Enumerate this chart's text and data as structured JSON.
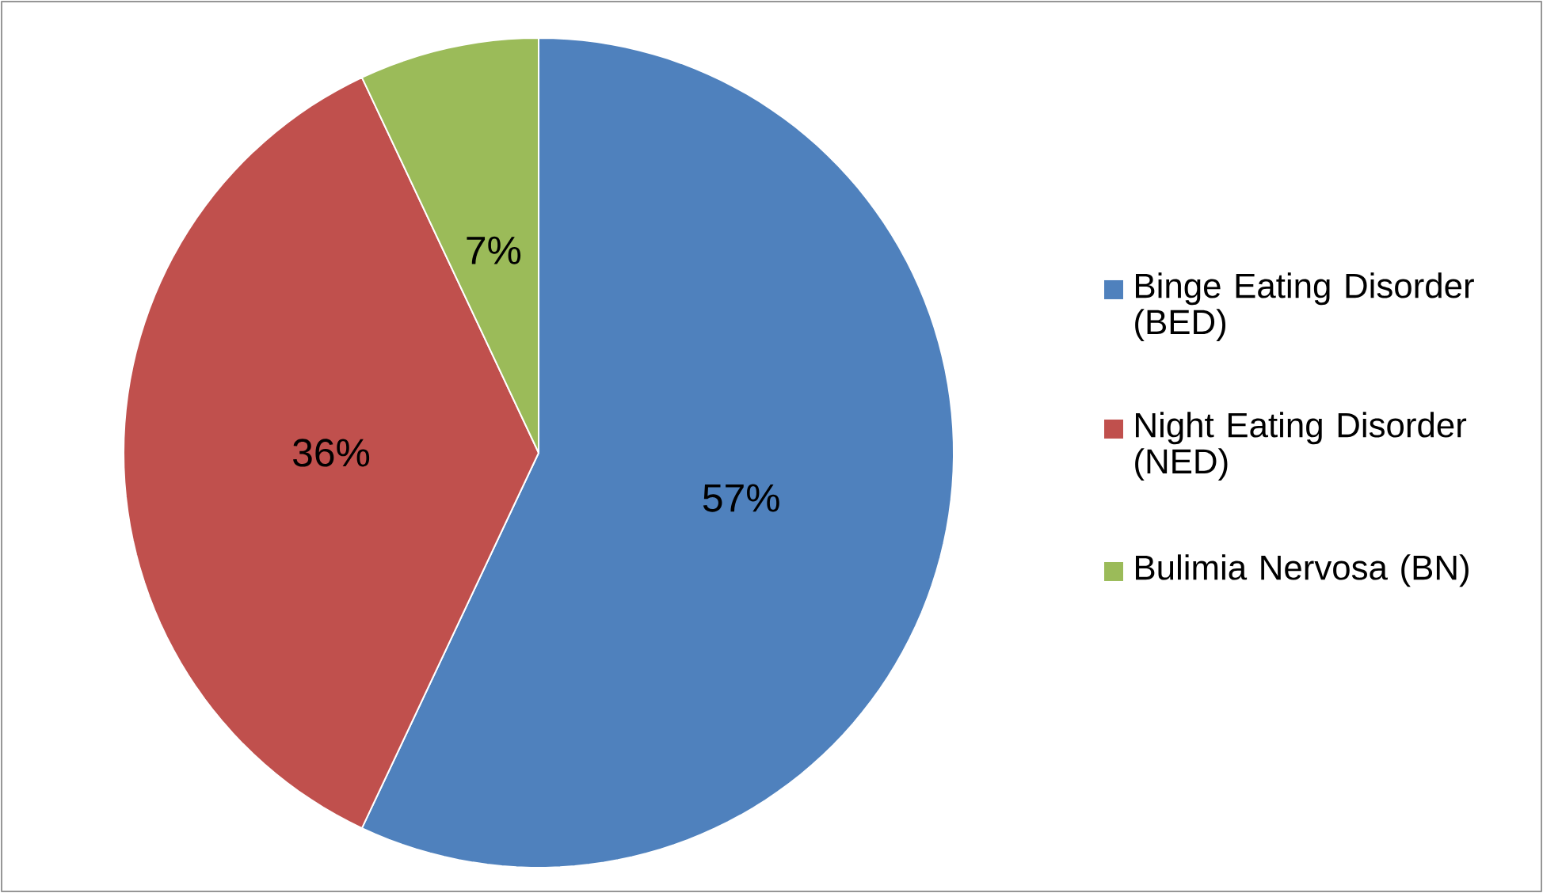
{
  "chart_data": {
    "type": "pie",
    "categories": [
      "Binge Eating Disorder (BED)",
      "Night Eating Disorder (NED)",
      "Bulimia Nervosa (BN)"
    ],
    "values": [
      57,
      36,
      7
    ],
    "value_labels": [
      "57%",
      "36%",
      "7%"
    ],
    "colors": [
      "#4f81bd",
      "#c0504d",
      "#9bbb59"
    ],
    "legend": "right"
  }
}
